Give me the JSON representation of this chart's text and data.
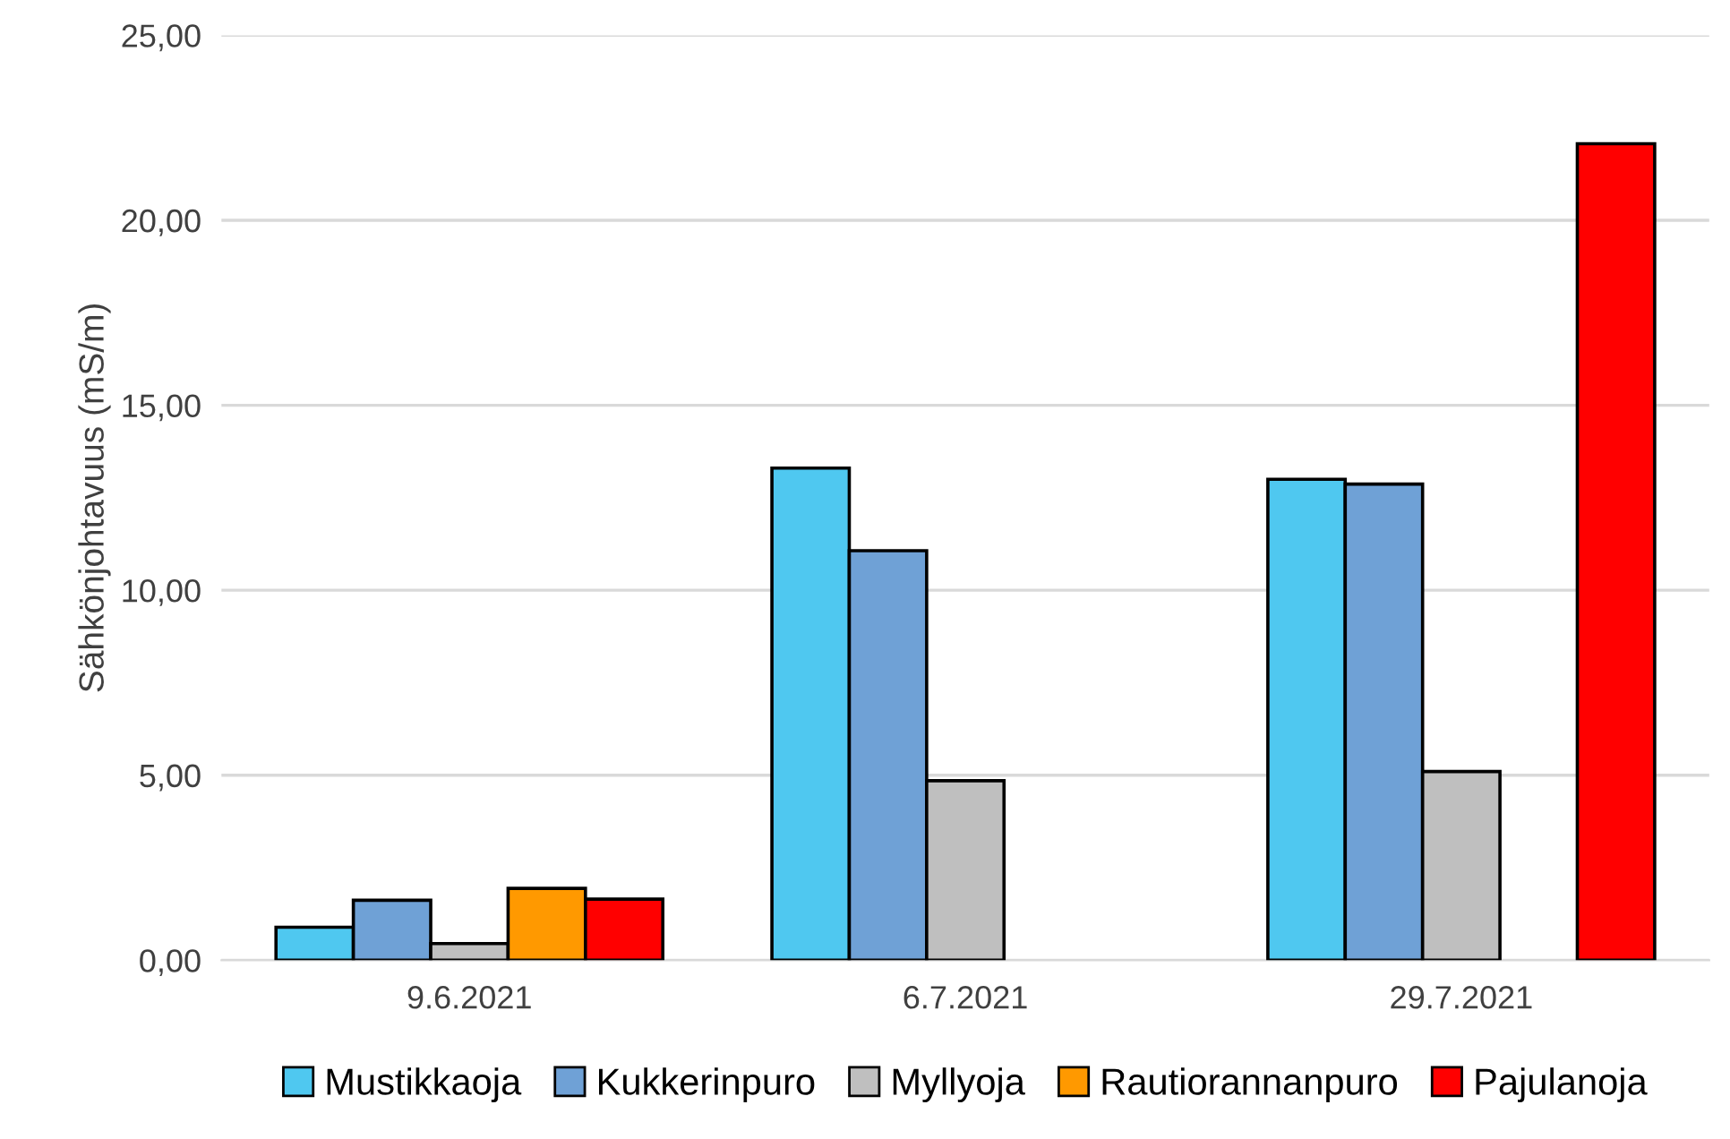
{
  "chart_data": {
    "type": "bar",
    "ylabel": "Sähkönjohtavuus (mS/m)",
    "categories": [
      "9.6.2021",
      "6.7.2021",
      "29.7.2021"
    ],
    "series": [
      {
        "name": "Mustikkaoja",
        "color": "#4fc8f0",
        "values": [
          0.89,
          13.3,
          13.0
        ]
      },
      {
        "name": "Kukkerinpuro",
        "color": "#6fa1d6",
        "values": [
          1.62,
          11.07,
          12.87
        ]
      },
      {
        "name": "Myllyoja",
        "color": "#bfbfbf",
        "values": [
          0.45,
          4.85,
          5.1
        ]
      },
      {
        "name": "Rautiorannanpuro",
        "color": "#ff9900",
        "values": [
          1.94,
          null,
          null
        ]
      },
      {
        "name": "Pajulanoja",
        "color": "#ff0000",
        "values": [
          1.65,
          null,
          22.07
        ]
      }
    ],
    "ylim": [
      0,
      25
    ],
    "yticks": [
      {
        "value": 0,
        "label": "0,00"
      },
      {
        "value": 5,
        "label": "5,00"
      },
      {
        "value": 10,
        "label": "10,00"
      },
      {
        "value": 15,
        "label": "15,00"
      },
      {
        "value": 20,
        "label": "20,00"
      },
      {
        "value": 25,
        "label": "25,00"
      }
    ],
    "grid": "y",
    "legend": "bottom"
  }
}
